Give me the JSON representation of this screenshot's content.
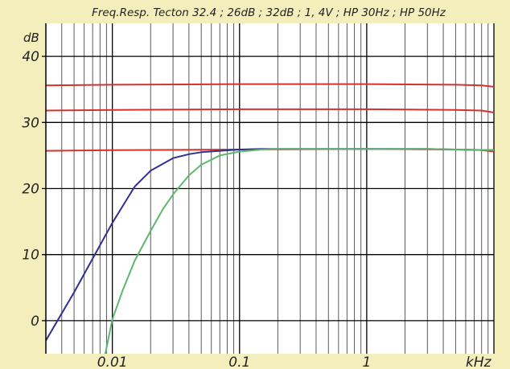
{
  "chart_data": {
    "type": "line",
    "title": "Freq.Resp. Tecton 32.4 ; 26dB ; 32dB ; 1, 4V ; HP 30Hz ; HP 50Hz",
    "ylabel": "dB",
    "xlabel": "kHz",
    "x_scale": "log",
    "xlim": [
      0.003,
      10
    ],
    "ylim": [
      -5,
      45
    ],
    "y_ticks": [
      {
        "value": 40,
        "label": "40"
      },
      {
        "value": 30,
        "label": "30"
      },
      {
        "value": 20,
        "label": "20"
      },
      {
        "value": 10,
        "label": "10"
      },
      {
        "value": 0,
        "label": "0"
      }
    ],
    "x_ticks": [
      {
        "value": 0.01,
        "label": "0.01"
      },
      {
        "value": 0.1,
        "label": "0.1"
      },
      {
        "value": 1,
        "label": "1"
      }
    ],
    "grid": true,
    "series": [
      {
        "color": "#d0342c",
        "x": [
          0.003,
          0.01,
          0.1,
          1,
          5,
          8,
          10
        ],
        "y": [
          35.6,
          35.7,
          35.8,
          35.8,
          35.7,
          35.6,
          35.4
        ]
      },
      {
        "color": "#d0342c",
        "x": [
          0.003,
          0.01,
          0.1,
          1,
          5,
          8,
          10
        ],
        "y": [
          31.8,
          31.9,
          32.0,
          32.0,
          31.9,
          31.8,
          31.5
        ]
      },
      {
        "color": "#d0342c",
        "x": [
          0.003,
          0.01,
          0.1,
          1,
          5,
          8,
          10
        ],
        "y": [
          25.7,
          25.8,
          25.9,
          26.0,
          25.9,
          25.8,
          25.6
        ]
      },
      {
        "color": "#303090",
        "x": [
          0.003,
          0.005,
          0.007,
          0.01,
          0.015,
          0.02,
          0.03,
          0.04,
          0.05,
          0.07,
          0.1,
          0.15,
          0.2,
          0.5,
          1,
          3,
          5,
          10
        ],
        "y": [
          -3,
          4.3,
          9.4,
          14.8,
          20.3,
          22.7,
          24.6,
          25.2,
          25.5,
          25.7,
          25.9,
          26.0,
          26.0,
          26.0,
          26.0,
          26.0,
          25.9,
          25.8
        ]
      },
      {
        "color": "#5cb86e",
        "x": [
          0.0088,
          0.01,
          0.012,
          0.015,
          0.02,
          0.025,
          0.03,
          0.04,
          0.05,
          0.07,
          0.1,
          0.15,
          0.2,
          0.5,
          1,
          3,
          5,
          10
        ],
        "y": [
          -5,
          0.2,
          4.5,
          9.1,
          13.6,
          16.9,
          19.1,
          22.0,
          23.6,
          25.0,
          25.6,
          25.9,
          26.0,
          26.0,
          26.0,
          26.0,
          25.9,
          25.8
        ]
      }
    ]
  },
  "colors": {
    "background": "#f3eebc",
    "plot_area": "#ffffff",
    "grid": "#000000",
    "minor_grid": "#5a5a5a"
  }
}
